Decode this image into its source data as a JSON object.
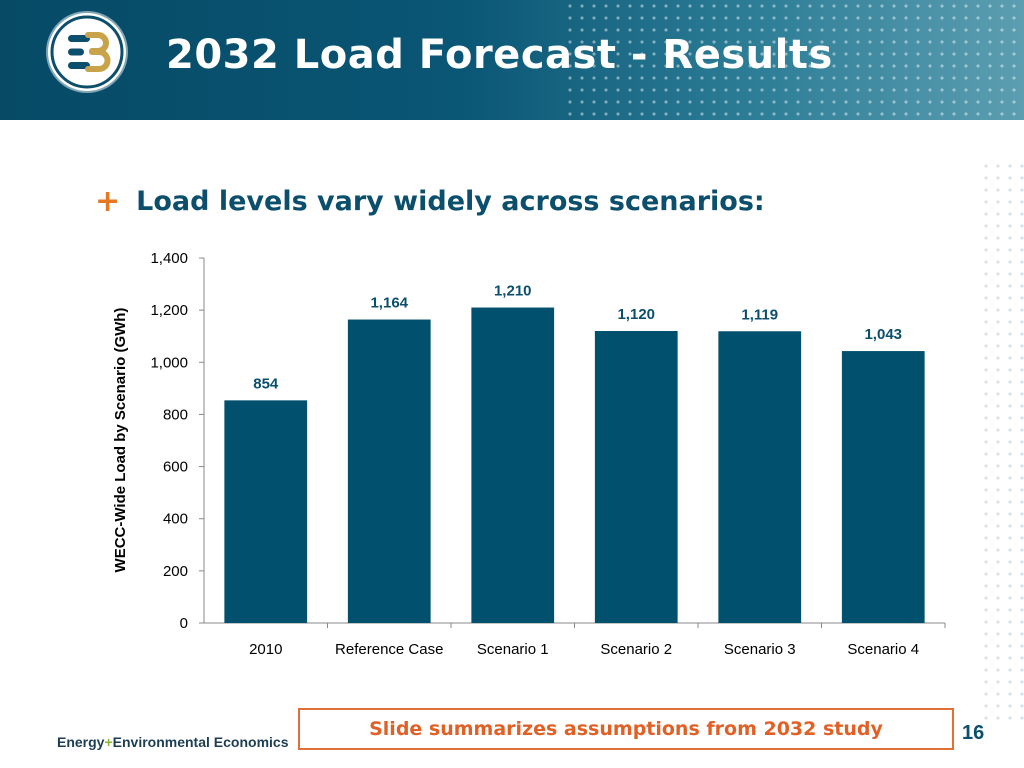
{
  "slide": {
    "title": "2032 Load Forecast - Results",
    "bullet_marker": "+",
    "bullet": "Load levels vary widely across scenarios:",
    "note": "Slide summarizes assumptions from 2032 study",
    "page_number": "16",
    "footer_brand_left": "Energy",
    "footer_brand_plus": "+",
    "footer_brand_right": "Environmental Economics"
  },
  "logo": {
    "icon": "e3-logo-icon",
    "colors": {
      "ring": "#0b4f6c",
      "gold": "#c9a34a"
    }
  },
  "chart_data": {
    "type": "bar",
    "title": "",
    "xlabel": "",
    "ylabel": "WECC-Wide Load by Scenario (GWh)",
    "categories": [
      "2010",
      "Reference Case",
      "Scenario 1",
      "Scenario 2",
      "Scenario 3",
      "Scenario 4"
    ],
    "values": [
      854,
      1164,
      1210,
      1120,
      1119,
      1043
    ],
    "data_labels": [
      "854",
      "1,164",
      "1,210",
      "1,120",
      "1,119",
      "1,043"
    ],
    "ylim": [
      0,
      1400
    ],
    "yticks": [
      0,
      200,
      400,
      600,
      800,
      1000,
      1200,
      1400
    ],
    "ytick_labels": [
      "0",
      "200",
      "400",
      "600",
      "800",
      "1,000",
      "1,200",
      "1,400"
    ],
    "grid": false,
    "legend": "none",
    "colors": {
      "bar": "#00506e",
      "data_label": "#0b4f6c",
      "axis": "#888888"
    }
  }
}
